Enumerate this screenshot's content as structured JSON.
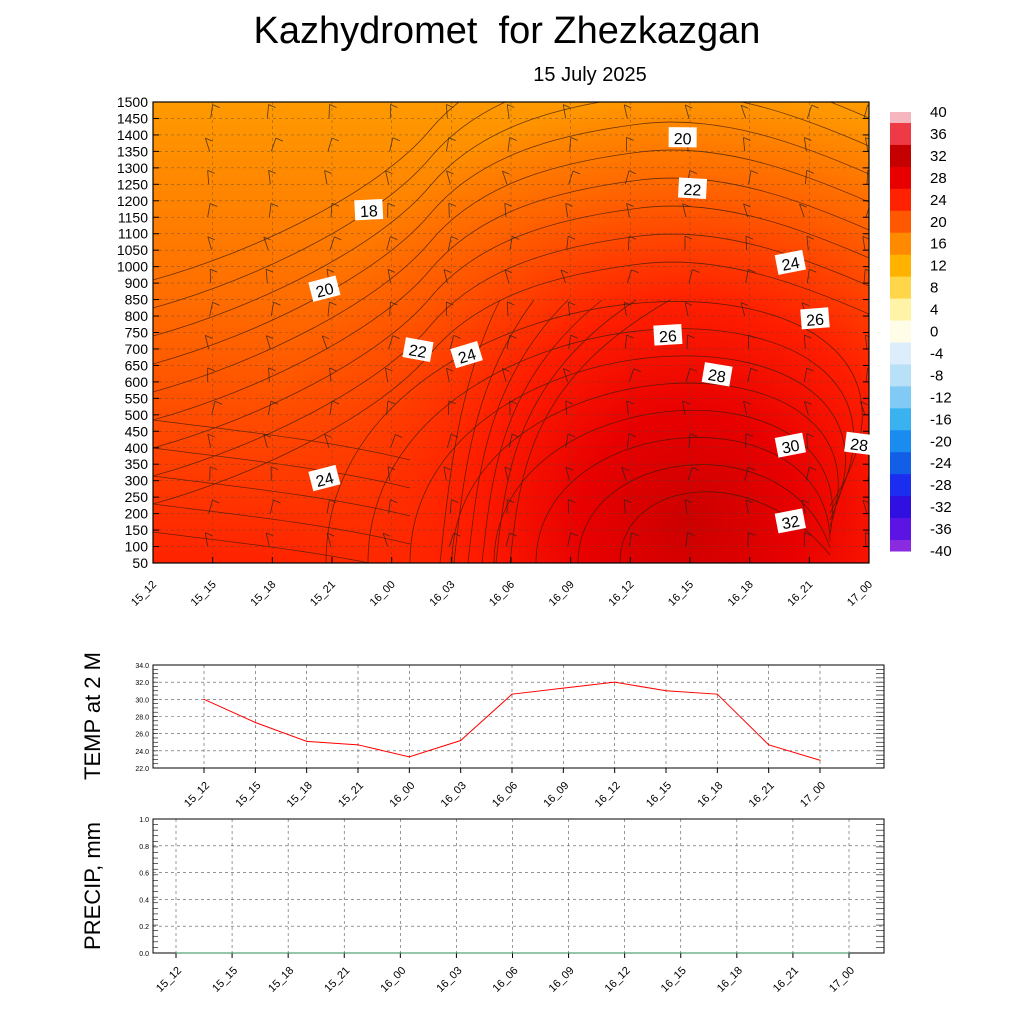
{
  "title": "Kazhydromet  for Zhezkazgan",
  "subtitle": "15 July 2025",
  "chart_data": [
    {
      "type": "heatmap",
      "x_categories": [
        "15_12",
        "15_15",
        "15_18",
        "15_21",
        "16_00",
        "16_03",
        "16_06",
        "16_09",
        "16_12",
        "16_15",
        "16_18",
        "16_21",
        "17_00"
      ],
      "y_ticks": [
        50,
        100,
        150,
        200,
        250,
        300,
        350,
        400,
        450,
        500,
        550,
        600,
        650,
        700,
        750,
        800,
        850,
        900,
        1000,
        1050,
        1100,
        1150,
        1200,
        1250,
        1300,
        1350,
        1400,
        1450,
        1500
      ],
      "colorbar_ticks": [
        40,
        36,
        32,
        28,
        24,
        20,
        16,
        12,
        8,
        4,
        0,
        -4,
        -8,
        -12,
        -16,
        -20,
        -24,
        -28,
        -32,
        -36,
        -40
      ],
      "colorbar_colors": [
        "#f6b6c0",
        "#ee3a44",
        "#c40000",
        "#e80000",
        "#ff2200",
        "#ff5800",
        "#ff8a00",
        "#ffb300",
        "#ffd54a",
        "#fff3a8",
        "#fffde8",
        "#dceefb",
        "#b8e0f7",
        "#80caf5",
        "#3ab2f0",
        "#1a8cf0",
        "#125ee6",
        "#1b2ef0",
        "#2f10e0",
        "#5c14e4",
        "#8a2be2"
      ],
      "contour_labels": [
        {
          "label": "20",
          "x": 10.8,
          "y": 1390
        },
        {
          "label": "22",
          "x": 11.0,
          "y": 1235
        },
        {
          "label": "18",
          "x": 4.4,
          "y": 1170
        },
        {
          "label": "24",
          "x": 13.0,
          "y": 1010
        },
        {
          "label": "20",
          "x": 3.5,
          "y": 880
        },
        {
          "label": "26",
          "x": 13.5,
          "y": 790
        },
        {
          "label": "26",
          "x": 10.5,
          "y": 740
        },
        {
          "label": "22",
          "x": 5.4,
          "y": 695
        },
        {
          "label": "24",
          "x": 6.4,
          "y": 680
        },
        {
          "label": "28",
          "x": 11.5,
          "y": 620
        },
        {
          "label": "30",
          "x": 13.0,
          "y": 405
        },
        {
          "label": "28",
          "x": 14.4,
          "y": 410
        },
        {
          "label": "24",
          "x": 3.5,
          "y": 305
        },
        {
          "label": "32",
          "x": 13.0,
          "y": 175
        }
      ]
    },
    {
      "type": "line",
      "ylabel": "TEMP at 2 M",
      "x": [
        "15_12",
        "15_15",
        "15_18",
        "15_21",
        "16_00",
        "16_03",
        "16_06",
        "16_09",
        "16_12",
        "16_15",
        "16_18",
        "16_21",
        "17_00"
      ],
      "values": [
        30.0,
        27.3,
        25.1,
        24.7,
        23.3,
        25.2,
        30.6,
        31.3,
        32.0,
        31.0,
        30.6,
        24.7,
        22.9
      ],
      "ylim": [
        22.0,
        34.0
      ],
      "y_ticks": [
        "22.0",
        "24.0",
        "26.0",
        "28.0",
        "30.0",
        "32.0",
        "34.0"
      ],
      "line_color": "#ff0000"
    },
    {
      "type": "line",
      "ylabel": "PRECIP, mm",
      "x": [
        "15_12",
        "15_15",
        "15_18",
        "15_21",
        "16_00",
        "16_03",
        "16_06",
        "16_09",
        "16_12",
        "16_15",
        "16_18",
        "16_21",
        "17_00"
      ],
      "values": [
        0,
        0,
        0,
        0,
        0,
        0,
        0,
        0,
        0,
        0,
        0,
        0,
        0
      ],
      "ylim": [
        0.0,
        1.0
      ],
      "y_ticks": [
        "0.0",
        "0.2",
        "0.4",
        "0.6",
        "0.8",
        "1.0"
      ],
      "line_color": "#2e8b57"
    }
  ]
}
